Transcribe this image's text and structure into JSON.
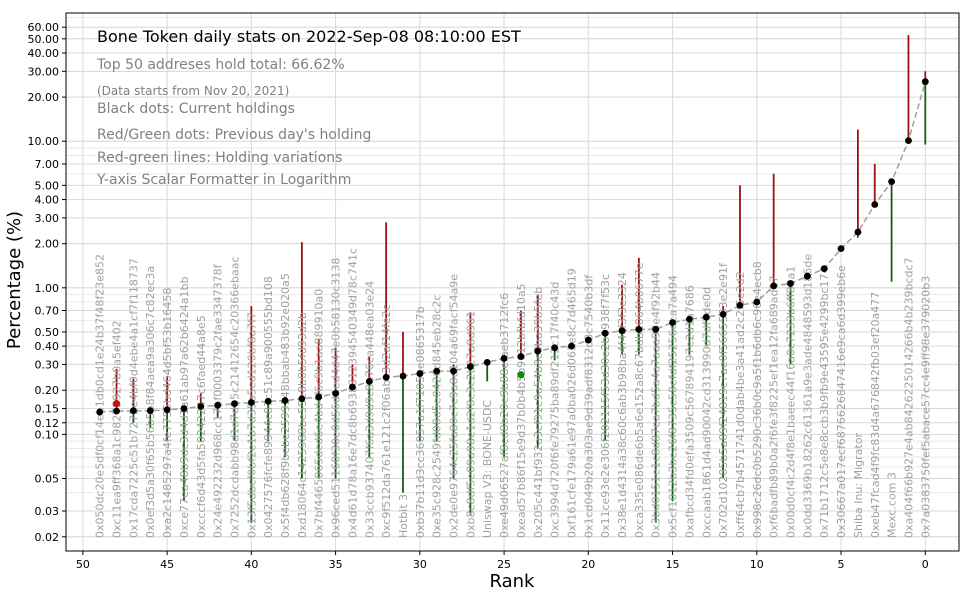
{
  "chart_data": {
    "type": "scatter",
    "title": "Bone Token daily stats on 2022-Sep-08 08:10:00  EST",
    "annotations": [
      "Top 50 addreses hold total: 66.62%",
      "(Data starts from Nov 20, 2021)",
      "Black dots: Current holdings",
      "Red/Green dots: Previous day's holding",
      "Red-green lines: Holding variations",
      "Y-axis Scalar Formatter in Logarithm"
    ],
    "xlabel": "Rank",
    "ylabel": "Percentage (%)",
    "x_scale": "linear",
    "y_scale": "log",
    "xlim": [
      51,
      -2
    ],
    "ylim": [
      0.016,
      75
    ],
    "grid": true,
    "x_ticks": [
      0,
      5,
      10,
      15,
      20,
      25,
      30,
      35,
      40,
      45,
      50
    ],
    "x_tick_labels": [
      "0",
      "5",
      "10",
      "15",
      "20",
      "25",
      "30",
      "35",
      "40",
      "45",
      "50"
    ],
    "y_ticks": [
      0.02,
      0.03,
      0.05,
      0.1,
      0.12,
      0.15,
      0.2,
      0.3,
      0.4,
      0.5,
      0.7,
      1.0,
      2.0,
      3.0,
      4.0,
      5.0,
      7.0,
      10.0,
      20.0,
      30.0,
      40.0,
      50.0,
      60.0
    ],
    "y_tick_labels": [
      "0.02",
      "0.03",
      "0.05",
      "0.10",
      "0.12",
      "0.15",
      "0.20",
      "0.30",
      "0.40",
      "0.50",
      "0.70",
      "1.00",
      "2.00",
      "3.00",
      "4.00",
      "5.00",
      "7.00",
      "10.00",
      "20.00",
      "30.00",
      "40.00",
      "50.00",
      "60.00"
    ],
    "holders": [
      {
        "rank": 0,
        "label": "0x7a0383750fef5abace57cc4e9ff98e379020b3",
        "current": 25.5,
        "low": 9.5,
        "high": 30.0,
        "prev": 27.0,
        "prev_color": "none"
      },
      {
        "rank": 1,
        "label": "0xa404f66b927e4ab8426225014266b4b239bcdc7",
        "current": 10.1,
        "low": 10.1,
        "high": 53.0,
        "prev": 10.1,
        "prev_color": "none"
      },
      {
        "rank": 2,
        "label": "Mexc.com 3",
        "current": 5.3,
        "low": 1.1,
        "high": 5.3,
        "prev": 5.3,
        "prev_color": "none"
      },
      {
        "rank": 3,
        "label": "0xeb47fcad4f9fc83d4a676842fb03ef20a477",
        "current": 3.7,
        "low": 3.7,
        "high": 7.0,
        "prev": 3.7,
        "prev_color": "none"
      },
      {
        "rank": 4,
        "label": "Shiba Inu: Migrator",
        "current": 2.4,
        "low": 2.2,
        "high": 12.0,
        "prev": 2.4,
        "prev_color": "none"
      },
      {
        "rank": 5,
        "label": "0x30667a017ecf6876626847416e9ca6d399eb6e",
        "current": 1.85,
        "low": 1.85,
        "high": 1.85,
        "prev": 1.85,
        "prev_color": "none"
      },
      {
        "rank": 6,
        "label": "0x71b1712c5e8e8ccb3b9fb9e43595e4299bc174",
        "current": 1.35,
        "low": 1.35,
        "high": 1.35,
        "prev": 1.35,
        "prev_color": "none"
      },
      {
        "rank": 7,
        "label": "0x0dd3369b18262c61361a9e3ade4848593d186de",
        "current": 1.2,
        "low": 1.2,
        "high": 1.2,
        "prev": 1.2,
        "prev_color": "none"
      },
      {
        "rank": 8,
        "label": "0x00d0cf4c2d4f8e1baeec44f16a0c7233b6ff80a1",
        "current": 1.07,
        "low": 0.3,
        "high": 1.07,
        "prev": 1.07,
        "prev_color": "none"
      },
      {
        "rank": 9,
        "label": "0xf6badfb89b0a2f6fe3f8225ef1ea12fa689ad17",
        "current": 1.03,
        "low": 1.03,
        "high": 6.0,
        "prev": 1.03,
        "prev_color": "none"
      },
      {
        "rank": 10,
        "label": "0x998c26dc0b5290c36b0c9a5f1b6db6c96e4ecb8",
        "current": 0.8,
        "low": 0.8,
        "high": 0.8,
        "prev": 0.8,
        "prev_color": "none"
      },
      {
        "rank": 11,
        "label": "0xff64cb7b4571741d0dab4be3a41ad2c2f5e2d2",
        "current": 0.76,
        "low": 0.76,
        "high": 5.0,
        "prev": 0.76,
        "prev_color": "none"
      },
      {
        "rank": 12,
        "label": "0x702d10285b5a89f24819c7ae0f5665583e2e91f",
        "current": 0.66,
        "low": 0.05,
        "high": 0.75,
        "prev": 0.66,
        "prev_color": "none"
      },
      {
        "rank": 13,
        "label": "0xccaab1861d4ad90042cd313990d7df7de0d",
        "current": 0.63,
        "low": 0.4,
        "high": 0.65,
        "prev": 0.63,
        "prev_color": "none"
      },
      {
        "rank": 14,
        "label": "0xafbcd34fd0efa3509c567894197e2d1a7686",
        "current": 0.61,
        "low": 0.35,
        "high": 0.63,
        "prev": 0.61,
        "prev_color": "none"
      },
      {
        "rank": 15,
        "label": "0x5cf1012b3be26f8735c58efdf25256dca7a494",
        "current": 0.58,
        "low": 0.035,
        "high": 0.6,
        "prev": 0.58,
        "prev_color": "none"
      },
      {
        "rank": 16,
        "label": "0x3bd0151e1c8d87ea7bd5a4a7aaa93e4f92b44",
        "current": 0.52,
        "low": 0.025,
        "high": 0.55,
        "prev": 0.52,
        "prev_color": "none"
      },
      {
        "rank": 17,
        "label": "0xca335e086de6b5a6e152a8c67bdb2064b0677e",
        "current": 0.52,
        "low": 0.35,
        "high": 1.6,
        "prev": 0.52,
        "prev_color": "none"
      },
      {
        "rank": 18,
        "label": "0x38e1d4314a38c60c6ab3b98ba4f4cf3f3e3324",
        "current": 0.51,
        "low": 0.35,
        "high": 1.05,
        "prev": 0.51,
        "prev_color": "none"
      },
      {
        "rank": 19,
        "label": "0x11ce93e2e306f202115f53d30e2b0938f7f53c",
        "current": 0.49,
        "low": 0.09,
        "high": 0.5,
        "prev": 0.49,
        "prev_color": "none"
      },
      {
        "rank": 20,
        "label": "0x1cd049b20a303ae9d39adf8312d3c7540b3df",
        "current": 0.44,
        "low": 0.44,
        "high": 0.44,
        "prev": 0.44,
        "prev_color": "none"
      },
      {
        "rank": 21,
        "label": "0xf161cfe179a61e97a0ba026d063e8c7d465d19",
        "current": 0.4,
        "low": 0.4,
        "high": 0.4,
        "prev": 0.4,
        "prev_color": "none"
      },
      {
        "rank": 22,
        "label": "0xc3994d720f6fe79275ba89df212c17f40c43d",
        "current": 0.39,
        "low": 0.32,
        "high": 0.39,
        "prev": 0.39,
        "prev_color": "none"
      },
      {
        "rank": 23,
        "label": "0x205c441bf932a3cf91c9a54b8c0ba39b5feb",
        "current": 0.37,
        "low": 0.08,
        "high": 0.9,
        "prev": 0.37,
        "prev_color": "none"
      },
      {
        "rank": 24,
        "label": "0xead57b86f15e9d37b0b4b5b9612bfbfd10a5",
        "current": 0.34,
        "low": 0.34,
        "high": 0.7,
        "prev": 0.255,
        "prev_color": "green"
      },
      {
        "rank": 25,
        "label": "0xe49d06527af8cd8b20e9b88efaeb3712fc6",
        "current": 0.33,
        "low": 0.07,
        "high": 0.33,
        "prev": 0.33,
        "prev_color": "none"
      },
      {
        "rank": 26,
        "label": "Uniswap V3: BONE-USDC",
        "current": 0.31,
        "low": 0.23,
        "high": 0.31,
        "prev": 0.31,
        "prev_color": "none"
      },
      {
        "rank": 27,
        "label": "0xb8c8df5e09a98e1d2f8c3c2b27a8d961",
        "current": 0.29,
        "low": 0.028,
        "high": 0.68,
        "prev": 0.29,
        "prev_color": "none"
      },
      {
        "rank": 28,
        "label": "0x2de0e9764c25fa80c7c9a8e104a69facf54a9e",
        "current": 0.27,
        "low": 0.05,
        "high": 0.3,
        "prev": 0.27,
        "prev_color": "none"
      },
      {
        "rank": 29,
        "label": "0xe35c928c2549fd08d5e0420d845eb28c2c",
        "current": 0.27,
        "low": 0.09,
        "high": 0.27,
        "prev": 0.27,
        "prev_color": "none"
      },
      {
        "rank": 30,
        "label": "0xb37b11d3cc36057a1f7105ae0865317b",
        "current": 0.26,
        "low": 0.09,
        "high": 0.26,
        "prev": 0.26,
        "prev_color": "none"
      },
      {
        "rank": 31,
        "label": "Hotbit 3",
        "current": 0.25,
        "low": 0.04,
        "high": 0.5,
        "prev": 0.25,
        "prev_color": "none"
      },
      {
        "rank": 32,
        "label": "0xc9f512da761e121c2f06abc3d2af14fe2c",
        "current": 0.245,
        "low": 0.245,
        "high": 2.8,
        "prev": 0.245,
        "prev_color": "none"
      },
      {
        "rank": 33,
        "label": "0x33ccb937407f6a3d9d9c8b76ca448ea03e24",
        "current": 0.23,
        "low": 0.07,
        "high": 0.34,
        "prev": 0.23,
        "prev_color": "none"
      },
      {
        "rank": 34,
        "label": "0x4d61d78a16e7dc8b6938812394540349d78c741c",
        "current": 0.21,
        "low": 0.2,
        "high": 0.3,
        "prev": 0.21,
        "prev_color": "none"
      },
      {
        "rank": 35,
        "label": "0x96ced51160f30e0d56d6ed4d47e0b58130c3138",
        "current": 0.19,
        "low": 0.05,
        "high": 0.39,
        "prev": 0.19,
        "prev_color": "none"
      },
      {
        "rank": 36,
        "label": "0x7bf4465065dcd6e4bd4f6c9b1aa889910a0",
        "current": 0.18,
        "low": 0.05,
        "high": 0.45,
        "prev": 0.18,
        "prev_color": "none"
      },
      {
        "rank": 37,
        "label": "0xd18064c1425988be55e8b0b5fd93d2b",
        "current": 0.175,
        "low": 0.05,
        "high": 2.05,
        "prev": 0.175,
        "prev_color": "none"
      },
      {
        "rank": 38,
        "label": "0x5f4db628f9bebe2599348bbab483b92e020a5",
        "current": 0.17,
        "low": 0.07,
        "high": 0.17,
        "prev": 0.17,
        "prev_color": "none"
      },
      {
        "rank": 39,
        "label": "0x0427576fcfe89944c87c51c89a900555bd108",
        "current": 0.168,
        "low": 0.09,
        "high": 0.17,
        "prev": 0.168,
        "prev_color": "none"
      },
      {
        "rank": 40,
        "label": "0x13f5dbcf0bf2e1b7d35a5cd120bf8a7f7",
        "current": 0.165,
        "low": 0.025,
        "high": 0.75,
        "prev": 0.165,
        "prev_color": "none"
      },
      {
        "rank": 41,
        "label": "0x7252dcdabb98d1d7db5c21412654c20366ebaac",
        "current": 0.162,
        "low": 0.09,
        "high": 0.162,
        "prev": 0.162,
        "prev_color": "none"
      },
      {
        "rank": 42,
        "label": "0x24e492232d968cc17bf0003379c2fae3347378f",
        "current": 0.158,
        "low": 0.13,
        "high": 0.16,
        "prev": 0.158,
        "prev_color": "none"
      },
      {
        "rank": 43,
        "label": "0xcccf6d43d5fa50242247c6faed44a8e5",
        "current": 0.155,
        "low": 0.09,
        "high": 0.19,
        "prev": 0.155,
        "prev_color": "none"
      },
      {
        "rank": 44,
        "label": "0xce77ea48b9dc3d4d1a61ab97a62b6424a1bb",
        "current": 0.15,
        "low": 0.035,
        "high": 0.15,
        "prev": 0.15,
        "prev_color": "none"
      },
      {
        "rank": 45,
        "label": "0xa2c1485297a4fe7755bd464d5bf53b16458",
        "current": 0.147,
        "low": 0.09,
        "high": 0.25,
        "prev": 0.147,
        "prev_color": "none"
      },
      {
        "rank": 46,
        "label": "0x0ef3d5a30f65b56b5b8f84aea9a306c7c82ec3a",
        "current": 0.145,
        "low": 0.11,
        "high": 0.145,
        "prev": 0.145,
        "prev_color": "none"
      },
      {
        "rank": 47,
        "label": "0x17cda7225c51b7272e4bf0d4ebe4a1cf7f118737",
        "current": 0.145,
        "low": 0.12,
        "high": 0.24,
        "prev": 0.145,
        "prev_color": "none"
      },
      {
        "rank": 48,
        "label": "0xc11ea9ff368a1c98275927b0a5ef402",
        "current": 0.144,
        "low": 0.144,
        "high": 0.28,
        "prev": 0.162,
        "prev_color": "red"
      },
      {
        "rank": 49,
        "label": "0x050dc20e5df0cf14eb1db0cd1e24b37f48f23e852",
        "current": 0.142,
        "low": 0.142,
        "high": 0.142,
        "prev": 0.142,
        "prev_color": "none"
      }
    ]
  }
}
